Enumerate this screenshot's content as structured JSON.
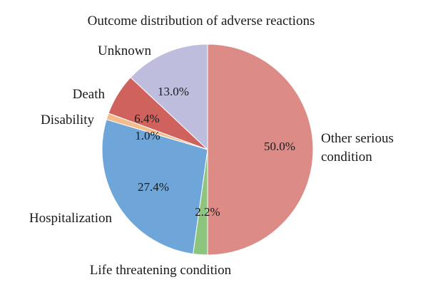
{
  "chart_data": {
    "type": "pie",
    "title": "Outcome distribution of adverse reactions",
    "start_angle_deg": 0,
    "direction": "clockwise",
    "slices": [
      {
        "label": "Other serious condition",
        "label_lines": [
          "Other serious",
          "condition"
        ],
        "value": 50.0,
        "value_label": "50.0%",
        "color": "#DC8B86"
      },
      {
        "label": "Life threatening condition",
        "label_lines": [
          "Life threatening condition"
        ],
        "value": 2.2,
        "value_label": "2.2%",
        "color": "#8DC47E"
      },
      {
        "label": "Hospitalization",
        "label_lines": [
          "Hospitalization"
        ],
        "value": 27.4,
        "value_label": "27.4%",
        "color": "#6FA6DA"
      },
      {
        "label": "Disability",
        "label_lines": [
          "Disability"
        ],
        "value": 1.0,
        "value_label": "1.0%",
        "color": "#F3BC8A"
      },
      {
        "label": "Death",
        "label_lines": [
          "Death"
        ],
        "value": 6.4,
        "value_label": "6.4%",
        "color": "#D0625E"
      },
      {
        "label": "Unknown",
        "label_lines": [
          "Unknown"
        ],
        "value": 13.0,
        "value_label": "13.0%",
        "color": "#BFBDDE"
      }
    ],
    "legend": "none"
  }
}
